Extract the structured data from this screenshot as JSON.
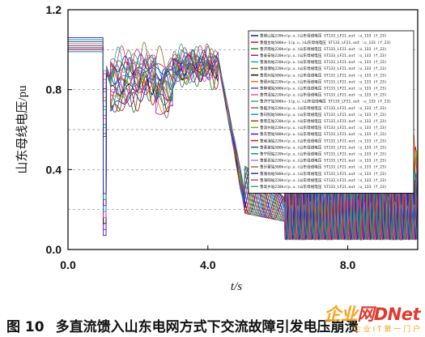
{
  "chart_data": {
    "type": "line",
    "xlabel": "t/s",
    "ylabel": "山东母线电压/pu",
    "xlim": [
      0,
      10
    ],
    "ylim": [
      0,
      1.2
    ],
    "x_ticks": [
      "0.0",
      "4.0",
      "8.0"
    ],
    "x_tick_values": [
      0,
      4,
      8
    ],
    "y_ticks": [
      "0.0",
      "0.4",
      "0.8",
      "1.2"
    ],
    "y_tick_values": [
      0,
      0.4,
      0.8,
      1.2
    ],
    "grid": "horizontal dashed",
    "legend_position": "top-right",
    "legend": [
      "鲁崂山站220kv(p.u.)山东母线电压 ST133_LF21.out :u_133 (f_23)",
      "鲁烟台站500kv-1(p.u.)山东母线电压 ST133_LF21.out :u_133 (f_23)",
      "鲁济南站220kv(p.u.)山东母线电压 ST133_LF21.out :u_133 (f_23)",
      "鲁泰安站220kv(p.u.)山东母线电压 ST133_LF21.out :u_133 (f_23)",
      "鲁潍坊站220kv(p.u.)山东母线电压 ST133_LF21.out :u_133 (f_23)",
      "鲁淄博站220kv(p.u.)山东母线电压 ST133_LF21.out :u_133 (f_23)",
      "鲁青州站500kv(p.u.)山东母线电压 ST133_LF21.out :u_133 (f_23)",
      "鲁德州站220kv(p.u.)山东母线电压 ST133_LF21.out :u_133 (f_23)",
      "鲁聊城站500kv(p.u.)山东母线电压 ST133_LF21.out :u_133 (f_23)",
      "鲁菏泽站220kv(p.u.)山东母线电压 ST133_LF21.out :u_133 (f_23)",
      "鲁济宁站500kv-1(p.u.)山东母线电压 ST133_LF21.out :u_133 (f_23)",
      "鲁临沂站220kv(p.u.)山东母线电压 ST133_LF21.out :u_133 (f_23)",
      "鲁日照站500kv(p.u.)山东母线电压 ST133_LF21.out :u_133 (f_23)",
      "鲁枣庄站220kv(p.u.)山东母线电压 ST133_LF21.out :u_133 (f_23)",
      "鲁滨州站220kv(p.u.)山东母线电压 ST133_LF21.out :u_133 (f_23)",
      "鲁东营站500kv(p.u.)山东母线电压 ST133_LF21.out :u_133 (f_23)",
      "鲁威海站220kv(p.u.)山东母线电压 ST133_LF21.out :u_133 (f_23)",
      "鲁莱芜站500kv(p.u.)山东母线电压 ST133_LF21.out :u_133 (f_23)",
      "鲁宁阳站220kv(p.u.)山东母线电压 ST133_LF21.out :u_133 (f_23)",
      "鲁邹县站220kv(p.u.)山东母线电压 ST133_LF21.out :u_133 (f_23)",
      "鲁沂蒙站500kv(p.u.)山东母线电压 ST133_LF21.out :u_133 (f_23)",
      "鲁潍坊站500kv(p.u.)山东母线电压 ST133_LF21.out :u_133 (f_23)",
      "鲁海阳站220kv(p.u.)山东母线电压 ST133_LF21.out :u_133 (f_23)",
      "鲁高乡站220kv(p.u.)山东母线电压 ST133_LF21.out :u_133 (f_23)"
    ],
    "series_colors": [
      "#0000cc",
      "#cc0000",
      "#008800",
      "#aa00aa",
      "#00aaaa",
      "#886600",
      "#000000",
      "#ff6600",
      "#3333ff",
      "#ff33aa",
      "#33aa33",
      "#666666",
      "#0088ff",
      "#aa3300",
      "#77aa00",
      "#5500aa",
      "#ff0000",
      "#0055aa",
      "#009966",
      "#cc66cc",
      "#996633",
      "#2222aa",
      "#cc3366",
      "#339999"
    ],
    "series_base_levels": [
      1.06,
      1.05,
      1.04,
      1.03,
      1.03,
      1.02,
      1.02,
      1.01,
      1.01,
      1.0,
      1.0,
      0.99,
      1.05,
      1.04,
      1.03,
      1.02,
      1.01,
      1.0,
      1.04,
      1.03,
      1.02,
      1.01,
      1.0,
      0.99
    ],
    "events": {
      "fault_time": 1.0,
      "fault_clear_time": 1.1,
      "post_fault_min": 0.07,
      "peak_time": 4.3,
      "peak_value": 1.02,
      "collapse_start": 4.5,
      "collapse_min": 0.05,
      "final_oscillation_range": [
        0.05,
        0.6
      ]
    }
  },
  "caption": {
    "number": "图 10",
    "text": "多直流馈入山东电网方式下交流故障引发电压崩溃"
  },
  "watermark": {
    "brand_left": "企业",
    "brand_right": "网D",
    "brand_net": "Net",
    "sub": "企 业 I T 第 一 门 户"
  }
}
